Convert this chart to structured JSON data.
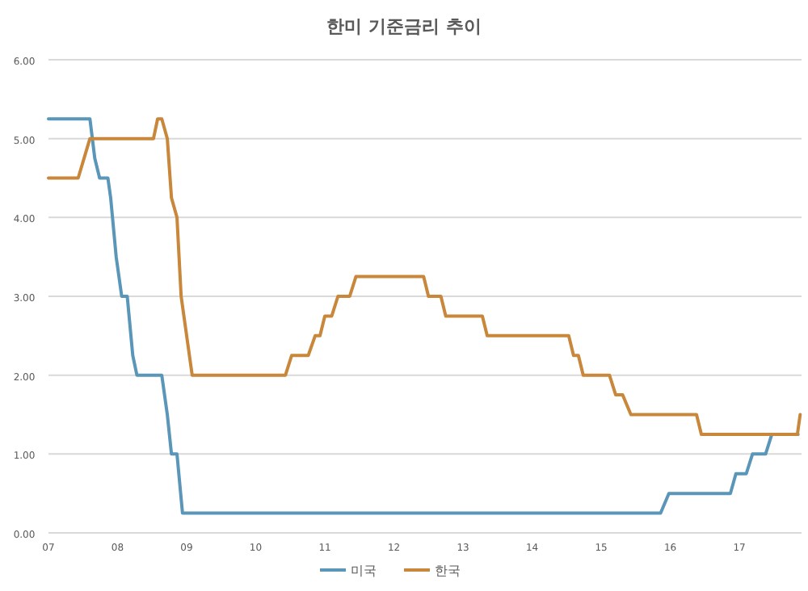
{
  "chart_data": {
    "type": "line",
    "title": "한미 기준금리 추이",
    "xlim": [
      2007,
      2017.9
    ],
    "xticks": [
      {
        "value": 2007,
        "label": "07"
      },
      {
        "value": 2008,
        "label": "08"
      },
      {
        "value": 2009,
        "label": "09"
      },
      {
        "value": 2010,
        "label": "10"
      },
      {
        "value": 2011,
        "label": "11"
      },
      {
        "value": 2012,
        "label": "12"
      },
      {
        "value": 2013,
        "label": "13"
      },
      {
        "value": 2014,
        "label": "14"
      },
      {
        "value": 2015,
        "label": "15"
      },
      {
        "value": 2016,
        "label": "16"
      },
      {
        "value": 2017,
        "label": "17"
      }
    ],
    "ylim": [
      0,
      6
    ],
    "yticks": [
      {
        "value": 0,
        "label": "0.00"
      },
      {
        "value": 1,
        "label": "1.00"
      },
      {
        "value": 2,
        "label": "2.00"
      },
      {
        "value": 3,
        "label": "3.00"
      },
      {
        "value": 4,
        "label": "4.00"
      },
      {
        "value": 5,
        "label": "5.00"
      },
      {
        "value": 6,
        "label": "6.00"
      }
    ],
    "grid": "y",
    "legend": "bottom",
    "marker": "none",
    "line_style": "solid",
    "series": [
      {
        "name": "미국",
        "color": "#5a96b8",
        "x": [
          2007,
          2007.6,
          2007.67,
          2007.74,
          2007.86,
          2007.9,
          2007.98,
          2008.06,
          2008.14,
          2008.22,
          2008.28,
          2008.64,
          2008.72,
          2008.78,
          2008.86,
          2008.94,
          2015.86,
          2015.98,
          2016.87,
          2016.95,
          2017.1,
          2017.19,
          2017.38,
          2017.47,
          2017.85
        ],
        "values": [
          5.25,
          5.25,
          4.75,
          4.5,
          4.5,
          4.25,
          3.5,
          3,
          3,
          2.25,
          2,
          2,
          1.5,
          1,
          1,
          0.25,
          0.25,
          0.5,
          0.5,
          0.75,
          0.75,
          1,
          1,
          1.25,
          1.25
        ]
      },
      {
        "name": "한국",
        "color": "#c8873a",
        "x": [
          2007,
          2007.43,
          2007.6,
          2008.52,
          2008.58,
          2008.64,
          2008.72,
          2008.78,
          2008.86,
          2008.92,
          2009.08,
          2010.43,
          2010.52,
          2010.76,
          2010.86,
          2010.93,
          2011,
          2011.1,
          2011.19,
          2011.36,
          2011.45,
          2012.43,
          2012.5,
          2012.68,
          2012.75,
          2013.28,
          2013.35,
          2014.53,
          2014.6,
          2014.67,
          2014.74,
          2015.12,
          2015.21,
          2015.31,
          2015.43,
          2016.38,
          2016.45,
          2017.84,
          2017.88
        ],
        "values": [
          4.5,
          4.5,
          5,
          5,
          5.25,
          5.25,
          5,
          4.25,
          4,
          3,
          2,
          2,
          2.25,
          2.25,
          2.5,
          2.5,
          2.75,
          2.75,
          3,
          3,
          3.25,
          3.25,
          3,
          3,
          2.75,
          2.75,
          2.5,
          2.5,
          2.25,
          2.25,
          2,
          2,
          1.75,
          1.75,
          1.5,
          1.5,
          1.25,
          1.25,
          1.5
        ]
      }
    ]
  }
}
